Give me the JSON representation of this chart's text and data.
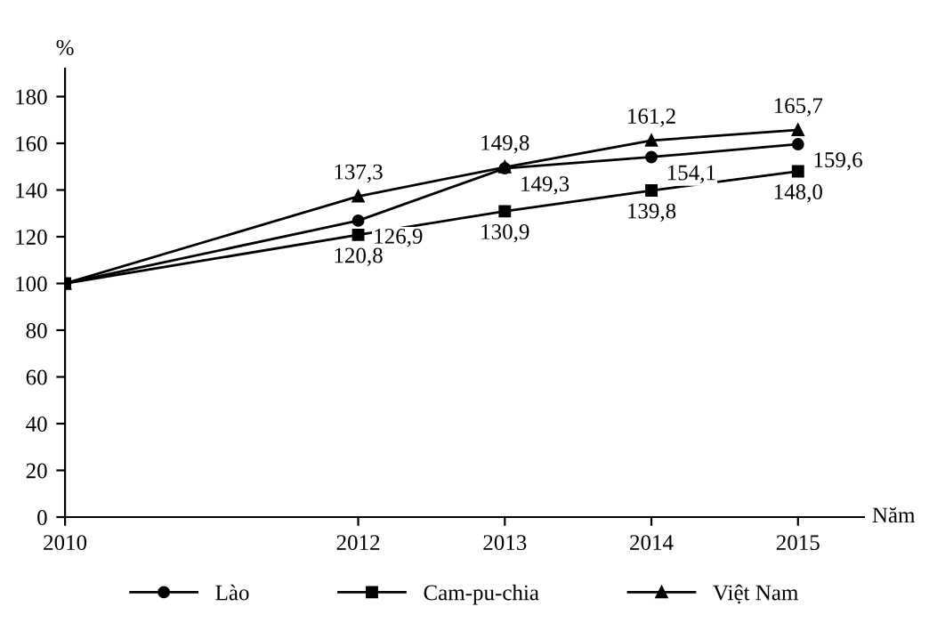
{
  "chart_data": {
    "type": "line",
    "xlabel": "Năm",
    "ylabel": "%",
    "x": [
      2010,
      2012,
      2013,
      2014,
      2015
    ],
    "series": [
      {
        "name": "Lào",
        "color": "#000000",
        "marker": "circle",
        "values": [
          100,
          126.9,
          149.3,
          154.1,
          159.6
        ],
        "value_labels": [
          null,
          "126,9",
          "149,3",
          "154,1",
          "159,6"
        ]
      },
      {
        "name": "Cam-pu-chia",
        "color": "#000000",
        "marker": "square",
        "values": [
          100,
          120.8,
          130.9,
          139.8,
          148.0
        ],
        "value_labels": [
          null,
          "120,8",
          "130,9",
          "139,8",
          "148,0"
        ]
      },
      {
        "name": "Việt Nam",
        "color": "#000000",
        "marker": "triangle",
        "values": [
          100,
          137.3,
          149.8,
          161.2,
          165.7
        ],
        "value_labels": [
          null,
          "137,3",
          "149,8",
          "161,2",
          "165,7"
        ]
      }
    ],
    "xlim": [
      2010,
      2015.45
    ],
    "xticks": [
      2010,
      2012,
      2013,
      2014,
      2015
    ],
    "ylim": [
      0,
      192
    ],
    "yticks": [
      0,
      20,
      40,
      60,
      80,
      100,
      120,
      140,
      160,
      180
    ],
    "legend": "bottom",
    "grid": false,
    "line_style": "solid"
  }
}
